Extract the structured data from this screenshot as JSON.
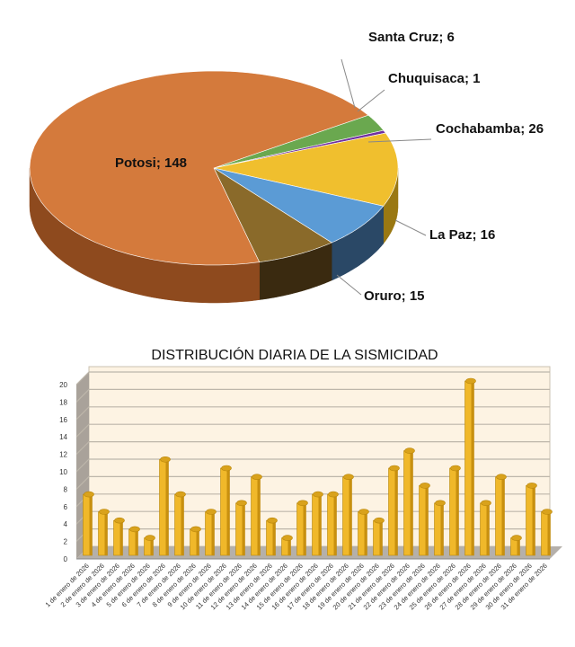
{
  "chart_data": [
    {
      "type": "pie",
      "style": "3d",
      "slices": [
        {
          "label": "Santa Cruz",
          "value": 6,
          "text": "Santa Cruz; 6",
          "color": "#6aa84f",
          "side": "#3f6e2c"
        },
        {
          "label": "Chuquisaca",
          "value": 1,
          "text": "Chuquisaca; 1",
          "color": "#7030a0",
          "side": "#401a60"
        },
        {
          "label": "Cochabamba",
          "value": 26,
          "text": "Cochabamba; 26",
          "color": "#f0bf2e",
          "side": "#9a7812"
        },
        {
          "label": "La Paz",
          "value": 16,
          "text": "La Paz; 16",
          "color": "#5b9bd5",
          "side": "#2a4866"
        },
        {
          "label": "Oruro",
          "value": 15,
          "text": "Oruro; 15",
          "color": "#8a6a2a",
          "side": "#3a2a10"
        },
        {
          "label": "Potosi",
          "value": 148,
          "text": "Potosi; 148",
          "color": "#d47a3c",
          "side": "#8e4a1e"
        }
      ]
    },
    {
      "type": "bar",
      "style": "3d-cylinder",
      "title": "DISTRIBUCIÓN DIARIA DE LA SISMICIDAD",
      "ylim": [
        0,
        20
      ],
      "yticks": [
        "0",
        "2",
        "4",
        "6",
        "8",
        "10",
        "12",
        "14",
        "16",
        "18",
        "20"
      ],
      "grid": true,
      "bar_color": "#f0b82a",
      "categories": [
        "1 de enero de 2026",
        "2 de enero de 2026",
        "3 de enero de 2026",
        "4 de enero de 2026",
        "5 de enero de 2026",
        "6 de enero de 2026",
        "7 de enero de 2026",
        "8 de enero de 2026",
        "9 de enero de 2026",
        "10 de enero de 2026",
        "11 de enero de 2026",
        "12 de enero de 2026",
        "13 de enero de 2026",
        "14 de enero de 2026",
        "15 de enero de 2026",
        "16 de enero de 2026",
        "17 de enero de 2026",
        "18 de enero de 2026",
        "19 de enero de 2026",
        "20 de enero de 2026",
        "21 de enero de 2026",
        "22 de enero de 2026",
        "23 de enero de 2026",
        "24 de enero de 2026",
        "25 de enero de 2026",
        "26 de enero de 2026",
        "27 de enero de 2026",
        "28 de enero de 2026",
        "29 de enero de 2026",
        "30 de enero de 2026",
        "31 de enero de 2026"
      ],
      "values": [
        7,
        5,
        4,
        3,
        2,
        11,
        7,
        3,
        5,
        10,
        6,
        9,
        4,
        2,
        6,
        7,
        7,
        9,
        5,
        4,
        10,
        12,
        8,
        6,
        10,
        20,
        6,
        9,
        2,
        8,
        5
      ]
    }
  ]
}
